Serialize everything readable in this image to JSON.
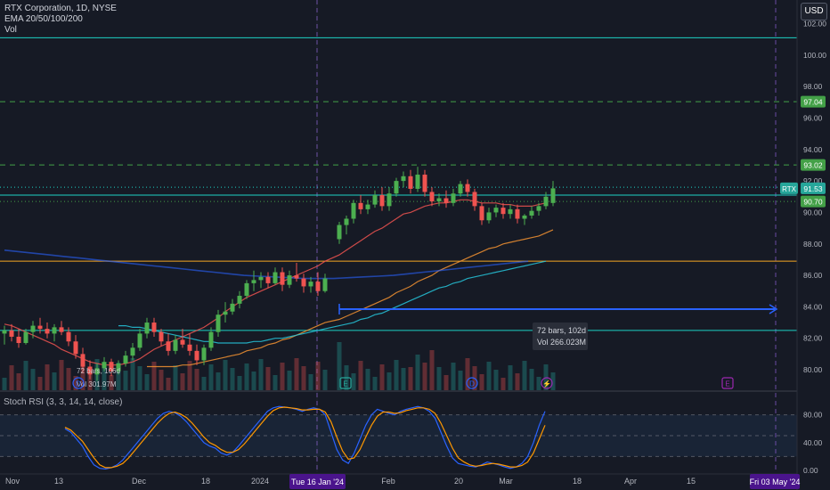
{
  "header": {
    "symbol_line": "RTX Corporation, 1D, NYSE",
    "ema_label": "EMA 20/50/100/200",
    "vol_label": "Vol",
    "currency_button": "USD"
  },
  "colors": {
    "background": "#161a25",
    "up": "#26a69a",
    "up_bright": "#4caf50",
    "down": "#ef5350",
    "ema20": "#ef5350",
    "ema50": "#f59331",
    "ema100": "#26c6da",
    "ema200": "#2962ff",
    "stoch_k": "#2962ff",
    "stoch_d": "#ff9800",
    "hline_orange": "#f5a623",
    "hline_teal": "#1dd1c5",
    "measure": "#2962ff",
    "price_label_green": "#43a047"
  },
  "rsi_label": "Stoch RSI (3, 3, 14, 14, close)",
  "price_labels": {
    "high_level": "97.04",
    "mid_level": "93.02",
    "current_ticker": "RTX",
    "current_price": "91.53",
    "prev_level": "90.70"
  },
  "measure": {
    "bars_main": "72 bars, 102d",
    "vol_main": "Vol 266.023M",
    "bars_left": "72 bars, 106d",
    "vol_left": "Vol 301.97M"
  },
  "time_highlights": {
    "left": "Tue 16 Jan '24",
    "right": "Fri 03 May '24"
  },
  "event_markers": [
    "D",
    "E",
    "D",
    "⚡",
    "E"
  ],
  "chart_data": {
    "type": "candlestick",
    "price_axis": {
      "ticks": [
        "102.00",
        "100.00",
        "98.00",
        "96.00",
        "94.00",
        "92.00",
        "90.00",
        "88.00",
        "86.00",
        "84.00",
        "82.00",
        "80.00"
      ],
      "range": [
        78.7,
        103.5
      ]
    },
    "time_axis": {
      "ticks": [
        "Nov",
        "13",
        "Dec",
        "18",
        "2024",
        "Feb",
        "20",
        "Mar",
        "18",
        "Apr",
        "15"
      ]
    },
    "horizontal_levels": [
      {
        "value": 101.1,
        "style": "solid",
        "color": "#1dd1c5"
      },
      {
        "value": 97.04,
        "style": "dashed",
        "color": "#43a047"
      },
      {
        "value": 93.02,
        "style": "dashed",
        "color": "#43a047"
      },
      {
        "value": 91.6,
        "style": "dotted",
        "color": "#1dd1c5"
      },
      {
        "value": 91.1,
        "style": "solid",
        "color": "#1dd1c5"
      },
      {
        "value": 90.7,
        "style": "dotted",
        "color": "#43a047"
      },
      {
        "value": 86.9,
        "style": "solid",
        "color": "#f5a623"
      },
      {
        "value": 82.5,
        "style": "solid",
        "color": "#1dd1c5"
      }
    ],
    "candles": [
      {
        "o": 82.3,
        "h": 82.8,
        "l": 81.6,
        "c": 82.5
      },
      {
        "o": 82.5,
        "h": 82.9,
        "l": 81.8,
        "c": 82.1
      },
      {
        "o": 82.1,
        "h": 82.6,
        "l": 81.4,
        "c": 81.7
      },
      {
        "o": 81.7,
        "h": 82.6,
        "l": 81.6,
        "c": 82.4
      },
      {
        "o": 82.4,
        "h": 83.1,
        "l": 82.0,
        "c": 82.8
      },
      {
        "o": 82.8,
        "h": 83.3,
        "l": 82.3,
        "c": 82.6
      },
      {
        "o": 82.6,
        "h": 83.0,
        "l": 82.0,
        "c": 82.3
      },
      {
        "o": 82.3,
        "h": 82.9,
        "l": 81.8,
        "c": 82.7
      },
      {
        "o": 82.7,
        "h": 83.1,
        "l": 82.2,
        "c": 82.4
      },
      {
        "o": 82.4,
        "h": 82.7,
        "l": 81.5,
        "c": 81.8
      },
      {
        "o": 81.8,
        "h": 82.2,
        "l": 80.7,
        "c": 81.0
      },
      {
        "o": 81.0,
        "h": 81.4,
        "l": 79.8,
        "c": 80.2
      },
      {
        "o": 80.2,
        "h": 80.6,
        "l": 79.4,
        "c": 79.7
      },
      {
        "o": 79.7,
        "h": 80.4,
        "l": 79.3,
        "c": 80.1
      },
      {
        "o": 80.1,
        "h": 80.8,
        "l": 79.9,
        "c": 80.5
      },
      {
        "o": 80.5,
        "h": 80.7,
        "l": 79.6,
        "c": 79.9
      },
      {
        "o": 79.9,
        "h": 80.6,
        "l": 79.7,
        "c": 80.4
      },
      {
        "o": 80.4,
        "h": 81.2,
        "l": 80.2,
        "c": 80.9
      },
      {
        "o": 80.9,
        "h": 81.7,
        "l": 80.6,
        "c": 81.4
      },
      {
        "o": 81.4,
        "h": 82.6,
        "l": 81.2,
        "c": 82.3
      },
      {
        "o": 82.3,
        "h": 83.3,
        "l": 82.0,
        "c": 83.0
      },
      {
        "o": 83.0,
        "h": 83.3,
        "l": 82.1,
        "c": 82.4
      },
      {
        "o": 82.4,
        "h": 82.6,
        "l": 81.5,
        "c": 81.8
      },
      {
        "o": 81.8,
        "h": 82.3,
        "l": 80.9,
        "c": 81.2
      },
      {
        "o": 81.2,
        "h": 82.2,
        "l": 81.0,
        "c": 81.9
      },
      {
        "o": 81.9,
        "h": 82.6,
        "l": 81.4,
        "c": 81.6
      },
      {
        "o": 81.6,
        "h": 82.3,
        "l": 80.9,
        "c": 81.2
      },
      {
        "o": 81.2,
        "h": 81.6,
        "l": 80.3,
        "c": 80.6
      },
      {
        "o": 80.6,
        "h": 81.6,
        "l": 80.3,
        "c": 81.4
      },
      {
        "o": 81.4,
        "h": 82.7,
        "l": 81.2,
        "c": 82.4
      },
      {
        "o": 82.4,
        "h": 83.8,
        "l": 82.1,
        "c": 83.5
      },
      {
        "o": 83.5,
        "h": 84.3,
        "l": 83.0,
        "c": 83.7
      },
      {
        "o": 83.7,
        "h": 84.5,
        "l": 83.5,
        "c": 84.2
      },
      {
        "o": 84.2,
        "h": 85.0,
        "l": 83.9,
        "c": 84.7
      },
      {
        "o": 84.7,
        "h": 85.7,
        "l": 84.5,
        "c": 85.5
      },
      {
        "o": 85.5,
        "h": 86.3,
        "l": 85.0,
        "c": 85.7
      },
      {
        "o": 85.7,
        "h": 86.2,
        "l": 85.2,
        "c": 85.9
      },
      {
        "o": 85.9,
        "h": 86.2,
        "l": 85.2,
        "c": 85.5
      },
      {
        "o": 85.5,
        "h": 86.5,
        "l": 85.4,
        "c": 86.2
      },
      {
        "o": 86.2,
        "h": 86.5,
        "l": 85.0,
        "c": 85.4
      },
      {
        "o": 85.4,
        "h": 86.3,
        "l": 85.2,
        "c": 86.0
      },
      {
        "o": 86.0,
        "h": 86.8,
        "l": 85.6,
        "c": 85.8
      },
      {
        "o": 85.8,
        "h": 86.1,
        "l": 84.9,
        "c": 85.3
      },
      {
        "o": 85.3,
        "h": 85.9,
        "l": 84.9,
        "c": 85.6
      },
      {
        "o": 85.6,
        "h": 86.2,
        "l": 84.7,
        "c": 85.0
      },
      {
        "o": 85.0,
        "h": 86.1,
        "l": 84.9,
        "c": 85.8
      },
      {
        "o": 88.3,
        "h": 89.4,
        "l": 88.0,
        "c": 89.2
      },
      {
        "o": 89.2,
        "h": 89.8,
        "l": 88.6,
        "c": 89.6
      },
      {
        "o": 89.6,
        "h": 90.8,
        "l": 89.3,
        "c": 90.6
      },
      {
        "o": 90.6,
        "h": 91.1,
        "l": 89.9,
        "c": 90.2
      },
      {
        "o": 90.2,
        "h": 90.8,
        "l": 89.9,
        "c": 90.5
      },
      {
        "o": 90.5,
        "h": 91.4,
        "l": 90.3,
        "c": 91.1
      },
      {
        "o": 91.1,
        "h": 91.6,
        "l": 90.1,
        "c": 90.4
      },
      {
        "o": 90.4,
        "h": 91.6,
        "l": 90.1,
        "c": 91.2
      },
      {
        "o": 91.2,
        "h": 92.2,
        "l": 91.0,
        "c": 92.0
      },
      {
        "o": 92.0,
        "h": 92.6,
        "l": 91.6,
        "c": 92.3
      },
      {
        "o": 92.3,
        "h": 92.7,
        "l": 91.2,
        "c": 91.5
      },
      {
        "o": 91.5,
        "h": 92.9,
        "l": 91.3,
        "c": 92.4
      },
      {
        "o": 92.4,
        "h": 92.7,
        "l": 91.0,
        "c": 91.3
      },
      {
        "o": 91.3,
        "h": 91.6,
        "l": 90.4,
        "c": 90.7
      },
      {
        "o": 90.7,
        "h": 91.2,
        "l": 90.4,
        "c": 90.9
      },
      {
        "o": 90.9,
        "h": 91.4,
        "l": 90.3,
        "c": 90.6
      },
      {
        "o": 90.6,
        "h": 91.5,
        "l": 90.4,
        "c": 91.2
      },
      {
        "o": 91.2,
        "h": 92.0,
        "l": 91.0,
        "c": 91.8
      },
      {
        "o": 91.8,
        "h": 92.1,
        "l": 91.0,
        "c": 91.3
      },
      {
        "o": 91.3,
        "h": 91.5,
        "l": 90.1,
        "c": 90.4
      },
      {
        "o": 90.4,
        "h": 90.6,
        "l": 89.2,
        "c": 89.5
      },
      {
        "o": 89.5,
        "h": 90.3,
        "l": 89.3,
        "c": 90.0
      },
      {
        "o": 90.0,
        "h": 90.5,
        "l": 89.7,
        "c": 90.3
      },
      {
        "o": 90.3,
        "h": 90.6,
        "l": 89.6,
        "c": 89.9
      },
      {
        "o": 89.9,
        "h": 90.5,
        "l": 89.6,
        "c": 90.2
      },
      {
        "o": 90.2,
        "h": 90.5,
        "l": 89.3,
        "c": 89.6
      },
      {
        "o": 89.6,
        "h": 89.9,
        "l": 89.2,
        "c": 89.8
      },
      {
        "o": 89.8,
        "h": 90.4,
        "l": 89.6,
        "c": 90.1
      },
      {
        "o": 90.1,
        "h": 90.6,
        "l": 89.8,
        "c": 90.4
      },
      {
        "o": 90.4,
        "h": 91.3,
        "l": 90.2,
        "c": 91.0
      },
      {
        "o": 90.6,
        "h": 92.0,
        "l": 90.4,
        "c": 91.53
      }
    ],
    "ema_series": [
      {
        "name": "EMA 20",
        "values": [
          82.9,
          82.8,
          82.6,
          82.4,
          82.2,
          82.0,
          81.8,
          81.6,
          81.3,
          81.1,
          80.9,
          80.7,
          80.5,
          80.4,
          80.3,
          80.3,
          80.3,
          80.4,
          80.5,
          80.7,
          81.0,
          81.3,
          81.5,
          81.7,
          81.9,
          82.1,
          82.3,
          82.5,
          82.7,
          83.0,
          83.3,
          83.7,
          84.0,
          84.3,
          84.6,
          84.8,
          85.0,
          85.2,
          85.4,
          85.6,
          85.8,
          86.0,
          86.2,
          86.4,
          86.6,
          86.9,
          87.3,
          87.6,
          87.9,
          88.2,
          88.5,
          88.8,
          89.0,
          89.3,
          89.6,
          89.9,
          90.0,
          90.2,
          90.4,
          90.5,
          90.6,
          90.6,
          90.7,
          90.8,
          90.8,
          90.7,
          90.6,
          90.6,
          90.6,
          90.5,
          90.5,
          90.4,
          90.4,
          90.4,
          90.5,
          90.6
        ]
      },
      {
        "name": "EMA 50",
        "values": [
          80.2,
          80.2,
          80.2,
          80.2,
          80.2,
          80.3,
          80.3,
          80.4,
          80.5,
          80.6,
          80.7,
          80.8,
          80.9,
          81.0,
          81.2,
          81.3,
          81.4,
          81.6,
          81.7,
          81.9,
          82.0,
          82.2,
          82.4,
          82.6,
          82.8,
          83.0,
          83.2,
          83.4,
          83.6,
          83.8,
          84.0,
          84.2,
          84.4,
          84.6,
          84.9,
          85.1,
          85.3,
          85.6,
          85.8,
          86.0,
          86.3,
          86.5,
          86.7,
          86.9,
          87.1,
          87.3,
          87.5,
          87.7,
          87.8,
          88.0,
          88.1,
          88.2,
          88.3,
          88.4,
          88.5,
          88.7,
          88.9
        ]
      },
      {
        "name": "EMA 100",
        "values": [
          82.8,
          82.8,
          82.7,
          82.7,
          82.6,
          82.5,
          82.4,
          82.3,
          82.2,
          82.1,
          82.0,
          81.9,
          81.8,
          81.8,
          81.7,
          81.7,
          81.7,
          81.7,
          81.7,
          81.8,
          81.8,
          81.9,
          82.0,
          82.0,
          82.1,
          82.2,
          82.3,
          82.4,
          82.5,
          82.6,
          82.8,
          82.9,
          83.0,
          83.2,
          83.3,
          83.5,
          83.6,
          83.8,
          84.0,
          84.2,
          84.4,
          84.6,
          84.8,
          85.0,
          85.2,
          85.3,
          85.5,
          85.6,
          85.8,
          85.9,
          86.0,
          86.1,
          86.2,
          86.3,
          86.4,
          86.5,
          86.6,
          86.7,
          86.8,
          86.9
        ]
      },
      {
        "name": "EMA 200",
        "values": [
          87.6,
          87.5,
          87.4,
          87.3,
          87.2,
          87.1,
          87.0,
          86.9,
          86.8,
          86.7,
          86.6,
          86.5,
          86.4,
          86.3,
          86.2,
          86.1,
          86.0,
          85.95,
          85.9,
          85.85,
          85.8,
          85.8,
          85.8,
          85.85,
          85.9,
          85.95,
          86.0,
          86.1,
          86.2,
          86.3,
          86.4,
          86.5,
          86.6,
          86.7,
          86.8,
          86.9
        ]
      }
    ],
    "stoch_rsi": {
      "ticks": [
        "80.00",
        "40.00",
        "0.00"
      ],
      "range": [
        0,
        100
      ],
      "bands": [
        80,
        20
      ],
      "midline": 50,
      "k": [
        60,
        55,
        45,
        35,
        20,
        8,
        3,
        2,
        4,
        8,
        15,
        25,
        35,
        45,
        55,
        65,
        75,
        82,
        85,
        83,
        78,
        70,
        60,
        50,
        40,
        35,
        32,
        25,
        22,
        26,
        35,
        45,
        55,
        65,
        75,
        85,
        90,
        92,
        91,
        90,
        88,
        85,
        88,
        90,
        88,
        80,
        55,
        30,
        15,
        10,
        25,
        45,
        65,
        80,
        88,
        85,
        82,
        80,
        85,
        88,
        90,
        92,
        90,
        85,
        75,
        55,
        35,
        18,
        10,
        8,
        6,
        5,
        8,
        12,
        10,
        8,
        5,
        3,
        5,
        10,
        20,
        40,
        65,
        85
      ],
      "d": [
        62,
        58,
        50,
        42,
        30,
        18,
        8,
        4,
        4,
        6,
        10,
        18,
        28,
        38,
        48,
        58,
        68,
        76,
        82,
        84,
        81,
        76,
        68,
        58,
        48,
        40,
        36,
        30,
        26,
        26,
        30,
        38,
        48,
        58,
        68,
        78,
        86,
        90,
        91,
        90,
        89,
        87,
        87,
        88,
        88,
        84,
        70,
        48,
        28,
        16,
        18,
        30,
        48,
        65,
        78,
        84,
        84,
        82,
        83,
        86,
        88,
        90,
        90,
        88,
        82,
        68,
        50,
        32,
        18,
        12,
        8,
        6,
        7,
        9,
        10,
        9,
        7,
        5,
        5,
        7,
        12,
        25,
        45,
        65
      ]
    }
  }
}
